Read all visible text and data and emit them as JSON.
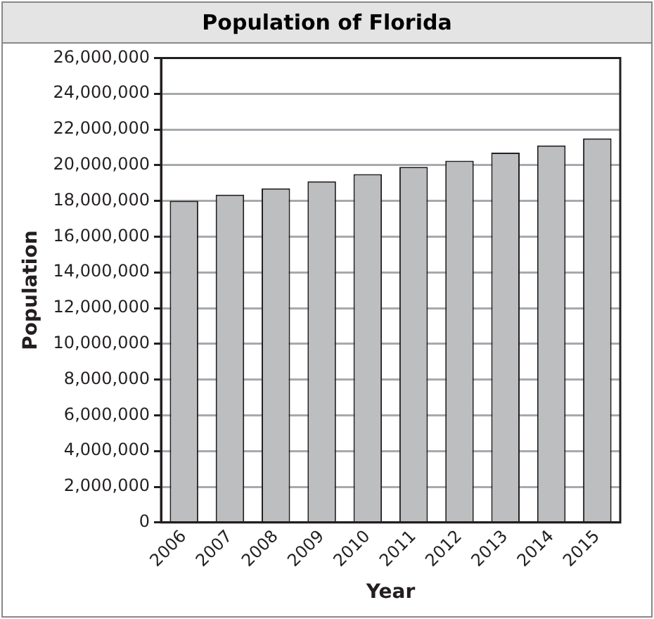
{
  "chart_data": {
    "type": "bar",
    "title": "Population of Florida",
    "xlabel": "Year",
    "ylabel": "Population",
    "categories": [
      "2006",
      "2007",
      "2008",
      "2009",
      "2010",
      "2011",
      "2012",
      "2013",
      "2014",
      "2015"
    ],
    "values": [
      18000000,
      18350000,
      18700000,
      19100000,
      19500000,
      19900000,
      20250000,
      20700000,
      21100000,
      21500000
    ],
    "color": "#bcbec0",
    "ylim": [
      0,
      26000000
    ],
    "yticks": [
      0,
      {
        "value": 2000000,
        "label": "2,000,000"
      },
      {
        "value": 4000000,
        "label": "4,000,000"
      },
      {
        "value": 6000000,
        "label": "6,000,000"
      },
      {
        "value": 8000000,
        "label": "8,000,000"
      },
      {
        "value": 10000000,
        "label": "10,000,000"
      },
      {
        "value": 12000000,
        "label": "12,000,000"
      },
      {
        "value": 14000000,
        "label": "14,000,000"
      },
      {
        "value": 16000000,
        "label": "16,000,000"
      },
      {
        "value": 18000000,
        "label": "18,000,000"
      },
      {
        "value": 20000000,
        "label": "20,000,000"
      },
      {
        "value": 22000000,
        "label": "22,000,000"
      },
      {
        "value": 24000000,
        "label": "24,000,000"
      },
      {
        "value": 26000000,
        "label": "26,000,000"
      }
    ],
    "grid": "y",
    "legend": false
  }
}
